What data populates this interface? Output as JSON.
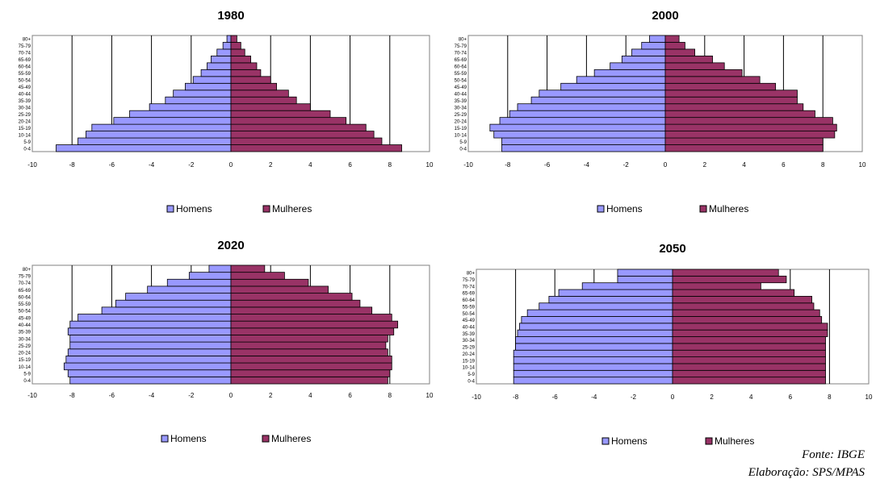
{
  "chart_data": [
    {
      "type": "bar",
      "title": "1980",
      "categories": [
        "0-4",
        "5-9",
        "10-14",
        "15-19",
        "20-24",
        "25-29",
        "30-34",
        "35-39",
        "40-44",
        "45-49",
        "50-54",
        "55-59",
        "60-64",
        "65-69",
        "70-74",
        "75-79",
        "80+"
      ],
      "series": [
        {
          "name": "Homens",
          "color": "#9999ff",
          "values": [
            -8.8,
            -7.7,
            -7.3,
            -7.0,
            -5.9,
            -5.1,
            -4.1,
            -3.3,
            -2.9,
            -2.3,
            -1.9,
            -1.5,
            -1.2,
            -1.0,
            -0.7,
            -0.4,
            -0.2
          ]
        },
        {
          "name": "Mulheres",
          "color": "#993366",
          "values": [
            8.6,
            7.6,
            7.2,
            6.8,
            5.8,
            5.0,
            4.0,
            3.3,
            2.9,
            2.3,
            2.0,
            1.5,
            1.3,
            1.0,
            0.7,
            0.5,
            0.3
          ]
        }
      ],
      "xlim": [
        -10,
        10
      ],
      "xticks": [
        "-10",
        "-8",
        "-6",
        "-4",
        "-2",
        "0",
        "2",
        "4",
        "6",
        "8",
        "10"
      ],
      "legend": [
        "Homens",
        "Mulheres"
      ],
      "grid": true
    },
    {
      "type": "bar",
      "title": "2000",
      "categories": [
        "0-4",
        "5-9",
        "10-14",
        "15-19",
        "20-24",
        "25-29",
        "30-34",
        "35-39",
        "40-44",
        "45-49",
        "50-54",
        "55-59",
        "60-64",
        "65-69",
        "70-74",
        "75-79",
        "80+"
      ],
      "series": [
        {
          "name": "Homens",
          "color": "#9999ff",
          "values": [
            -8.3,
            -8.3,
            -8.7,
            -8.9,
            -8.4,
            -7.9,
            -7.5,
            -6.8,
            -6.4,
            -5.3,
            -4.5,
            -3.6,
            -2.8,
            -2.2,
            -1.7,
            -1.2,
            -0.8
          ]
        },
        {
          "name": "Mulheres",
          "color": "#993366",
          "values": [
            8.0,
            8.0,
            8.6,
            8.7,
            8.5,
            7.6,
            7.0,
            6.7,
            6.7,
            5.6,
            4.8,
            3.9,
            3.0,
            2.4,
            1.5,
            1.0,
            0.7
          ]
        }
      ],
      "xlim": [
        -10,
        10
      ],
      "xticks": [
        "-10",
        "-8",
        "-6",
        "-4",
        "-2",
        "0",
        "2",
        "4",
        "6",
        "8",
        "10"
      ],
      "legend": [
        "Homens",
        "Mulheres"
      ],
      "grid": true
    },
    {
      "type": "bar",
      "title": "2020",
      "categories": [
        "0-4",
        "5-9",
        "10-14",
        "15-19",
        "20-24",
        "25-29",
        "30-34",
        "35-39",
        "40-44",
        "45-49",
        "50-54",
        "55-59",
        "60-64",
        "65-69",
        "70-74",
        "75-79",
        "80+"
      ],
      "series": [
        {
          "name": "Homens",
          "color": "#9999ff",
          "values": [
            -8.1,
            -8.2,
            -8.4,
            -8.3,
            -8.2,
            -8.1,
            -8.1,
            -8.2,
            -8.1,
            -7.7,
            -6.5,
            -5.8,
            -5.3,
            -4.2,
            -3.2,
            -2.1,
            -1.1
          ]
        },
        {
          "name": "Mulheres",
          "color": "#993366",
          "values": [
            7.9,
            8.0,
            8.1,
            8.1,
            7.9,
            7.8,
            7.9,
            8.2,
            8.4,
            8.1,
            7.1,
            6.5,
            6.1,
            4.9,
            3.9,
            2.7,
            1.7
          ]
        }
      ],
      "xlim": [
        -10,
        10
      ],
      "xticks": [
        "-10",
        "-8",
        "-6",
        "-4",
        "-2",
        "0",
        "2",
        "4",
        "6",
        "8",
        "10"
      ],
      "legend": [
        "Homens",
        "Mulheres"
      ],
      "grid": true
    },
    {
      "type": "bar",
      "title": "2050",
      "categories": [
        "0-4",
        "5-9",
        "10-14",
        "15-19",
        "20-24",
        "25-29",
        "30-34",
        "35-39",
        "40-44",
        "45-49",
        "50-54",
        "55-59",
        "60-64",
        "65-69",
        "70-74",
        "75-79",
        "80+"
      ],
      "series": [
        {
          "name": "Homens",
          "color": "#9999ff",
          "values": [
            -8.1,
            -8.1,
            -8.1,
            -8.1,
            -8.1,
            -8.0,
            -8.0,
            -7.9,
            -7.8,
            -7.7,
            -7.4,
            -6.8,
            -6.3,
            -5.8,
            -4.6,
            -2.8,
            -2.8
          ]
        },
        {
          "name": "Mulheres",
          "color": "#993366",
          "values": [
            7.8,
            7.8,
            7.8,
            7.8,
            7.8,
            7.8,
            7.8,
            7.9,
            7.9,
            7.6,
            7.5,
            7.2,
            7.1,
            6.2,
            4.5,
            5.8,
            5.4
          ]
        }
      ],
      "xlim": [
        -10,
        10
      ],
      "xticks": [
        "-10",
        "-8",
        "-6",
        "-4",
        "-2",
        "0",
        "2",
        "4",
        "6",
        "8",
        "10"
      ],
      "legend": [
        "Homens",
        "Mulheres"
      ],
      "grid": true
    }
  ],
  "source": {
    "fonte": "Fonte: IBGE",
    "elaboracao": "Elaboração: SPS/MPAS"
  }
}
